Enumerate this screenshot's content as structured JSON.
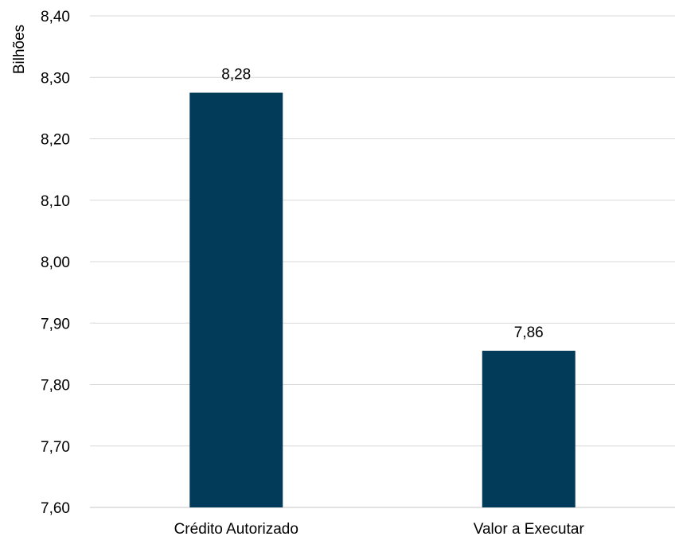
{
  "chart_data": {
    "type": "bar",
    "categories": [
      "Crédito Autorizado",
      "Valor a Executar"
    ],
    "values": [
      8.275,
      7.855
    ],
    "data_labels": [
      "8,28",
      "7,86"
    ],
    "ylabel": "Bilhões",
    "xlabel": "",
    "title": "",
    "ylim": [
      7.6,
      8.4
    ],
    "yticks": [
      7.6,
      7.7,
      7.8,
      7.9,
      8.0,
      8.1,
      8.2,
      8.3,
      8.4
    ],
    "ytick_labels": [
      "7,60",
      "7,70",
      "7,80",
      "7,90",
      "8,00",
      "8,10",
      "8,20",
      "8,30",
      "8,40"
    ],
    "grid": true,
    "legend": "none",
    "colors": {
      "bar": "#023A5A",
      "grid": "#D9D9D9",
      "text": "#000000"
    }
  }
}
